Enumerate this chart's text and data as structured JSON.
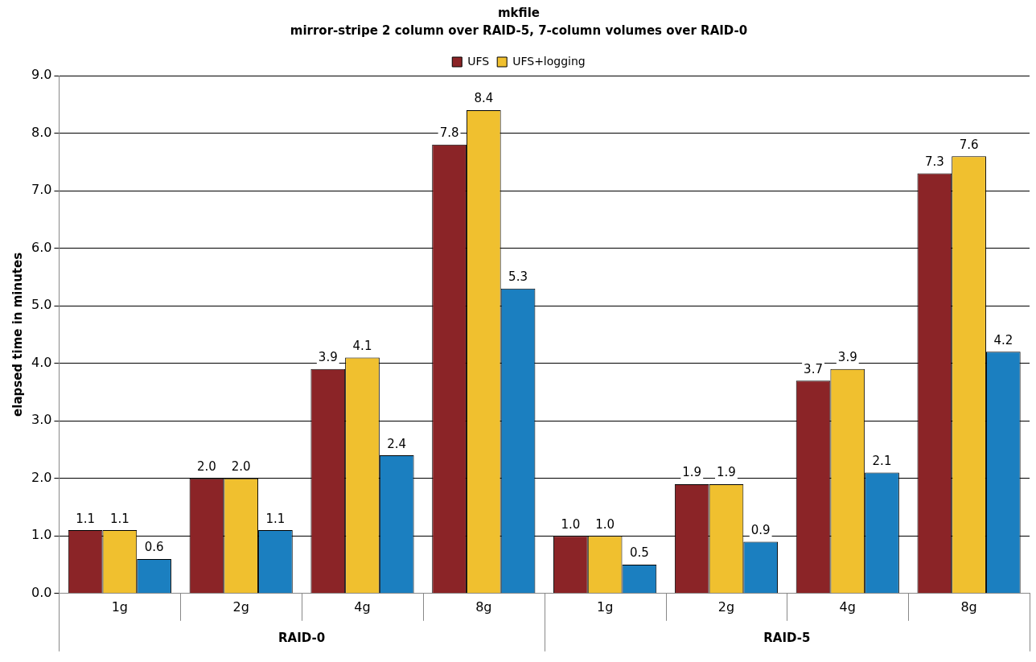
{
  "chart_data": {
    "type": "bar",
    "title": "mkfile",
    "subtitle": "mirror-stripe 2 column over RAID-5, 7-column volumes over RAID-0",
    "ylabel": "elapsed time in minutes",
    "categories": [
      "1g",
      "2g",
      "4g",
      "8g",
      "1g",
      "2g",
      "4g",
      "8g"
    ],
    "series": [
      {
        "name": "UFS",
        "color": "#8b2427",
        "values": [
          1.1,
          2.0,
          3.9,
          7.8,
          1.0,
          1.9,
          3.7,
          7.3
        ],
        "value_labels": [
          "1.1",
          "2.0",
          "3.9",
          "7.8",
          "1.0",
          "1.9",
          "3.7",
          "7.3"
        ]
      },
      {
        "name": "UFS+logging",
        "color": "#f0c02f",
        "values": [
          1.1,
          2.0,
          4.1,
          8.4,
          1.0,
          1.9,
          3.9,
          7.6
        ],
        "value_labels": [
          "1.1",
          "2.0",
          "4.1",
          "8.4",
          "1.0",
          "1.9",
          "3.9",
          "7.6"
        ]
      },
      {
        "color": "#1b7fc0",
        "values": [
          0.6,
          1.1,
          2.4,
          5.3,
          0.5,
          0.9,
          2.1,
          4.2
        ],
        "value_labels": [
          "0.6",
          "1.1",
          "2.4",
          "5.3",
          "0.5",
          "0.9",
          "2.1",
          "4.2"
        ]
      }
    ],
    "annotations": [
      "RAID-0",
      "RAID-5"
    ],
    "ylim": [
      0,
      9
    ],
    "yticks": [
      {
        "value": 0,
        "label": "0.0"
      },
      {
        "value": 1,
        "label": "1.0"
      },
      {
        "value": 2,
        "label": "2.0"
      },
      {
        "value": 3,
        "label": "3.0"
      },
      {
        "value": 4,
        "label": "4.0"
      },
      {
        "value": 5,
        "label": "5.0"
      },
      {
        "value": 6,
        "label": "6.0"
      },
      {
        "value": 7,
        "label": "7.0"
      },
      {
        "value": 8,
        "label": "8.0"
      },
      {
        "value": 9,
        "label": "9.0"
      }
    ],
    "grid": "y",
    "legend": "top"
  }
}
